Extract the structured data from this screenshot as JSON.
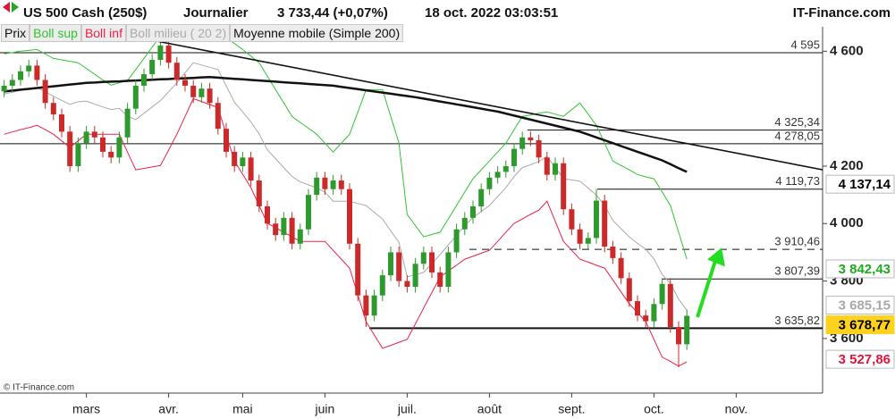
{
  "chart_data": {
    "type": "candlestick",
    "title": "US 500 Cash (250$)",
    "period": "Journalier",
    "quote": "3 733,44 (+0,07%)",
    "datetime": "18 oct. 2022 03:03:51",
    "source": "IT-Finance.com",
    "copyright": "© IT-Finance.com",
    "categories": [
      null,
      null,
      null,
      null,
      null,
      null,
      null,
      null,
      null,
      null,
      "mars",
      null,
      null,
      null,
      null,
      null,
      null,
      null,
      null,
      null,
      "avr.",
      null,
      null,
      null,
      null,
      null,
      null,
      null,
      null,
      "mai",
      null,
      null,
      null,
      null,
      null,
      null,
      null,
      null,
      null,
      "juin",
      null,
      null,
      null,
      null,
      null,
      null,
      null,
      null,
      null,
      "juil.",
      null,
      null,
      null,
      null,
      null,
      null,
      null,
      null,
      null,
      "août",
      null,
      null,
      null,
      null,
      null,
      null,
      null,
      null,
      null,
      "sept.",
      null,
      null,
      null,
      null,
      null,
      null,
      null,
      null,
      null,
      "oct.",
      null,
      null,
      null,
      null,
      null,
      null,
      null,
      null,
      null,
      "nov."
    ],
    "ohlc": {
      "name": "Prix",
      "up_color": "#2e9a2e",
      "down_color": "#cc2a2a",
      "values": [
        [
          4460,
          4500,
          4440,
          4480
        ],
        [
          4480,
          4520,
          4460,
          4500
        ],
        [
          4500,
          4550,
          4480,
          4530
        ],
        [
          4530,
          4570,
          4510,
          4550
        ],
        [
          4550,
          4570,
          4480,
          4500
        ],
        [
          4500,
          4520,
          4400,
          4420
        ],
        [
          4420,
          4440,
          4360,
          4380
        ],
        [
          4380,
          4400,
          4300,
          4320
        ],
        [
          4320,
          4340,
          4180,
          4200
        ],
        [
          4200,
          4300,
          4180,
          4280
        ],
        [
          4280,
          4340,
          4260,
          4320
        ],
        [
          4320,
          4340,
          4280,
          4300
        ],
        [
          4300,
          4320,
          4230,
          4250
        ],
        [
          4250,
          4270,
          4210,
          4230
        ],
        [
          4230,
          4320,
          4210,
          4300
        ],
        [
          4300,
          4420,
          4280,
          4400
        ],
        [
          4400,
          4500,
          4380,
          4480
        ],
        [
          4480,
          4540,
          4460,
          4520
        ],
        [
          4520,
          4590,
          4500,
          4570
        ],
        [
          4570,
          4640,
          4550,
          4620
        ],
        [
          4620,
          4640,
          4540,
          4560
        ],
        [
          4560,
          4580,
          4480,
          4500
        ],
        [
          4500,
          4520,
          4460,
          4480
        ],
        [
          4480,
          4500,
          4420,
          4440
        ],
        [
          4440,
          4490,
          4420,
          4470
        ],
        [
          4470,
          4490,
          4400,
          4420
        ],
        [
          4420,
          4440,
          4310,
          4330
        ],
        [
          4330,
          4350,
          4230,
          4250
        ],
        [
          4250,
          4270,
          4180,
          4200
        ],
        [
          4200,
          4250,
          4180,
          4230
        ],
        [
          4230,
          4250,
          4130,
          4150
        ],
        [
          4150,
          4170,
          4040,
          4060
        ],
        [
          4060,
          4080,
          3980,
          4000
        ],
        [
          4000,
          4020,
          3940,
          3960
        ],
        [
          3960,
          4040,
          3940,
          4020
        ],
        [
          4020,
          4040,
          3910,
          3930
        ],
        [
          3930,
          4000,
          3910,
          3980
        ],
        [
          3980,
          4120,
          3960,
          4100
        ],
        [
          4100,
          4180,
          4080,
          4160
        ],
        [
          4160,
          4180,
          4100,
          4120
        ],
        [
          4120,
          4170,
          4100,
          4150
        ],
        [
          4150,
          4170,
          4100,
          4120
        ],
        [
          4120,
          4140,
          3910,
          3930
        ],
        [
          3930,
          3950,
          3730,
          3750
        ],
        [
          3750,
          3770,
          3640,
          3680
        ],
        [
          3680,
          3770,
          3660,
          3750
        ],
        [
          3750,
          3840,
          3730,
          3820
        ],
        [
          3820,
          3920,
          3800,
          3900
        ],
        [
          3900,
          3920,
          3780,
          3800
        ],
        [
          3800,
          3820,
          3760,
          3780
        ],
        [
          3780,
          3880,
          3760,
          3860
        ],
        [
          3860,
          3920,
          3840,
          3900
        ],
        [
          3900,
          3920,
          3810,
          3830
        ],
        [
          3830,
          3850,
          3760,
          3780
        ],
        [
          3780,
          3920,
          3760,
          3900
        ],
        [
          3900,
          4000,
          3880,
          3980
        ],
        [
          3980,
          4040,
          3960,
          4020
        ],
        [
          4020,
          4080,
          4000,
          4060
        ],
        [
          4060,
          4140,
          4040,
          4120
        ],
        [
          4120,
          4180,
          4100,
          4160
        ],
        [
          4160,
          4200,
          4140,
          4180
        ],
        [
          4180,
          4220,
          4160,
          4200
        ],
        [
          4200,
          4280,
          4180,
          4260
        ],
        [
          4260,
          4320,
          4240,
          4300
        ],
        [
          4300,
          4320,
          4270,
          4290
        ],
        [
          4290,
          4310,
          4210,
          4230
        ],
        [
          4230,
          4250,
          4150,
          4170
        ],
        [
          4170,
          4230,
          4150,
          4210
        ],
        [
          4210,
          4230,
          4030,
          4050
        ],
        [
          4050,
          4070,
          3960,
          3980
        ],
        [
          3980,
          4000,
          3910,
          3930
        ],
        [
          3930,
          3970,
          3910,
          3950
        ],
        [
          3950,
          4120,
          3930,
          4080
        ],
        [
          4080,
          4100,
          3900,
          3920
        ],
        [
          3920,
          3940,
          3860,
          3880
        ],
        [
          3880,
          3900,
          3790,
          3810
        ],
        [
          3810,
          3830,
          3710,
          3730
        ],
        [
          3730,
          3750,
          3660,
          3680
        ],
        [
          3680,
          3700,
          3640,
          3660
        ],
        [
          3660,
          3740,
          3640,
          3720
        ],
        [
          3720,
          3810,
          3700,
          3790
        ],
        [
          3790,
          3810,
          3620,
          3640
        ],
        [
          3640,
          3660,
          3500,
          3580
        ],
        [
          3580,
          3700,
          3560,
          3679
        ],
        null,
        null,
        null,
        null,
        null,
        null
      ]
    },
    "series": [
      {
        "name": "Boll sup",
        "color": "#33c333",
        "values": [
          4591,
          4595,
          4600,
          4603,
          4606,
          4590,
          4575,
          4570,
          4565,
          4560,
          4540,
          4520,
          4500,
          4482,
          4490,
          4498,
          4536,
          4575,
          4614,
          4653,
          4661,
          4669,
          4677,
          4684,
          4679,
          4673,
          4668,
          4647,
          4627,
          4606,
          4583,
          4560,
          4513,
          4466,
          4420,
          4373,
          4352,
          4332,
          4311,
          4280,
          4249,
          4280,
          4311,
          4388,
          4466,
          4466,
          4466,
          4373,
          4280,
          4032,
          3993,
          3954,
          3962,
          3970,
          4016,
          4063,
          4110,
          4156,
          4187,
          4218,
          4249,
          4280,
          4327,
          4373,
          4378,
          4384,
          4389,
          4381,
          4373,
          4397,
          4420,
          4381,
          4342,
          4280,
          4218,
          4202,
          4187,
          4171,
          4163,
          4156,
          4110,
          4063,
          3970,
          3876,
          null,
          null,
          null,
          null,
          null,
          null
        ]
      },
      {
        "name": "Boll inf",
        "color": "#e8224a",
        "values": [
          4311,
          4319,
          4327,
          4334,
          4342,
          4327,
          4311,
          4288,
          4265,
          4288,
          4311,
          4311,
          4311,
          4311,
          4311,
          4249,
          4187,
          4192,
          4197,
          4202,
          4256,
          4311,
          4373,
          4435,
          4425,
          4414,
          4404,
          4311,
          4218,
          4172,
          4125,
          4063,
          4001,
          3986,
          3970,
          3954,
          3938,
          3938,
          3938,
          3938,
          3907,
          3876,
          3845,
          3752,
          3659,
          3612,
          3566,
          3576,
          3587,
          3597,
          3651,
          3706,
          3760,
          3814,
          3835,
          3855,
          3876,
          3886,
          3897,
          3907,
          3938,
          3970,
          4001,
          4016,
          4032,
          4047,
          4078,
          4008,
          3938,
          3907,
          3876,
          3866,
          3855,
          3845,
          3804,
          3762,
          3721,
          3690,
          3659,
          3597,
          3535,
          3520,
          3504,
          3519,
          null,
          null,
          null,
          null,
          null,
          null
        ]
      },
      {
        "name": "Boll milieu ( 20 2)",
        "color": "#aaaaaa",
        "values": [
          4451,
          4457,
          4464,
          4469,
          4474,
          4459,
          4443,
          4429,
          4415,
          4424,
          4426,
          4416,
          4406,
          4397,
          4401,
          4374,
          4362,
          4384,
          4406,
          4428,
          4459,
          4490,
          4525,
          4560,
          4552,
          4544,
          4536,
          4479,
          4423,
          4389,
          4354,
          4312,
          4257,
          4226,
          4195,
          4164,
          4145,
          4135,
          4125,
          4109,
          4078,
          4078,
          4078,
          4070,
          4063,
          4039,
          4016,
          3975,
          3934,
          3815,
          3822,
          3830,
          3861,
          3892,
          3926,
          3959,
          3993,
          4021,
          4042,
          4063,
          4094,
          4125,
          4164,
          4195,
          4205,
          4216,
          4234,
          4195,
          4156,
          4152,
          4148,
          4124,
          4099,
          4063,
          4011,
          3982,
          3954,
          3931,
          3911,
          3877,
          3823,
          3792,
          3737,
          3698,
          null,
          null,
          null,
          null,
          null,
          null
        ]
      },
      {
        "name": "Moyenne mobile (Simple 200)",
        "color": "#111111",
        "width": 2.5,
        "values": [
          4460,
          4463,
          4466,
          4469,
          4472,
          4475,
          4478,
          4481,
          4484,
          4487,
          4490,
          4491,
          4493,
          4494,
          4495,
          4497,
          4498,
          4499,
          4501,
          4502,
          4503,
          4505,
          4506,
          4507,
          4509,
          4510,
          4508,
          4506,
          4504,
          4502,
          4500,
          4498,
          4496,
          4494,
          4492,
          4490,
          4488,
          4486,
          4484,
          4482,
          4480,
          4476,
          4472,
          4468,
          4464,
          4460,
          4456,
          4452,
          4448,
          4444,
          4440,
          4435,
          4430,
          4425,
          4420,
          4415,
          4410,
          4405,
          4400,
          4395,
          4390,
          4383,
          4376,
          4369,
          4362,
          4355,
          4348,
          4341,
          4334,
          4327,
          4320,
          4310,
          4300,
          4290,
          4280,
          4270,
          4260,
          4250,
          4240,
          4230,
          4220,
          4207,
          4193,
          4180,
          null,
          null,
          null,
          null,
          null,
          null
        ]
      }
    ],
    "levels": [
      {
        "value": 4595,
        "label": "4 595",
        "style": "solid"
      },
      {
        "value": 4325.34,
        "label": "4 325,34",
        "style": "solid"
      },
      {
        "value": 4278.05,
        "label": "4 278,05",
        "style": "solid"
      },
      {
        "value": 4119.73,
        "label": "4 119,73",
        "style": "solid"
      },
      {
        "value": 3910.46,
        "label": "3 910,46",
        "style": "dashed"
      },
      {
        "value": 3807.39,
        "label": "3 807,39",
        "style": "solid"
      },
      {
        "value": 3635.82,
        "label": "3 635,82",
        "style": "bold"
      }
    ],
    "price_tags": [
      {
        "value": 4137.14,
        "label": "4 137,14",
        "color": "#000000",
        "background": "#ffffff"
      },
      {
        "value": 3842.43,
        "label": "3 842,43",
        "color": "#1faa1f",
        "background": "#ffffff"
      },
      {
        "value": 3685.15,
        "label": "3 685,15",
        "color": "#a8a8a8",
        "background": "#ffffff"
      },
      {
        "value": 3678.77,
        "label": "3 678,77",
        "color": "#000000",
        "background": "#ffd21f"
      },
      {
        "value": 3527.86,
        "label": "3 527,86",
        "color": "#e0143c",
        "background": "#ffffff"
      }
    ],
    "ylim": [
      3410,
      4685
    ],
    "yticks": [
      {
        "value": 3600,
        "label": "3 600"
      },
      {
        "value": 3800,
        "label": "3 800"
      },
      {
        "value": 4000,
        "label": "4 000"
      },
      {
        "value": 4200,
        "label": "4 200"
      },
      {
        "value": 4600,
        "label": "4 600"
      }
    ]
  }
}
